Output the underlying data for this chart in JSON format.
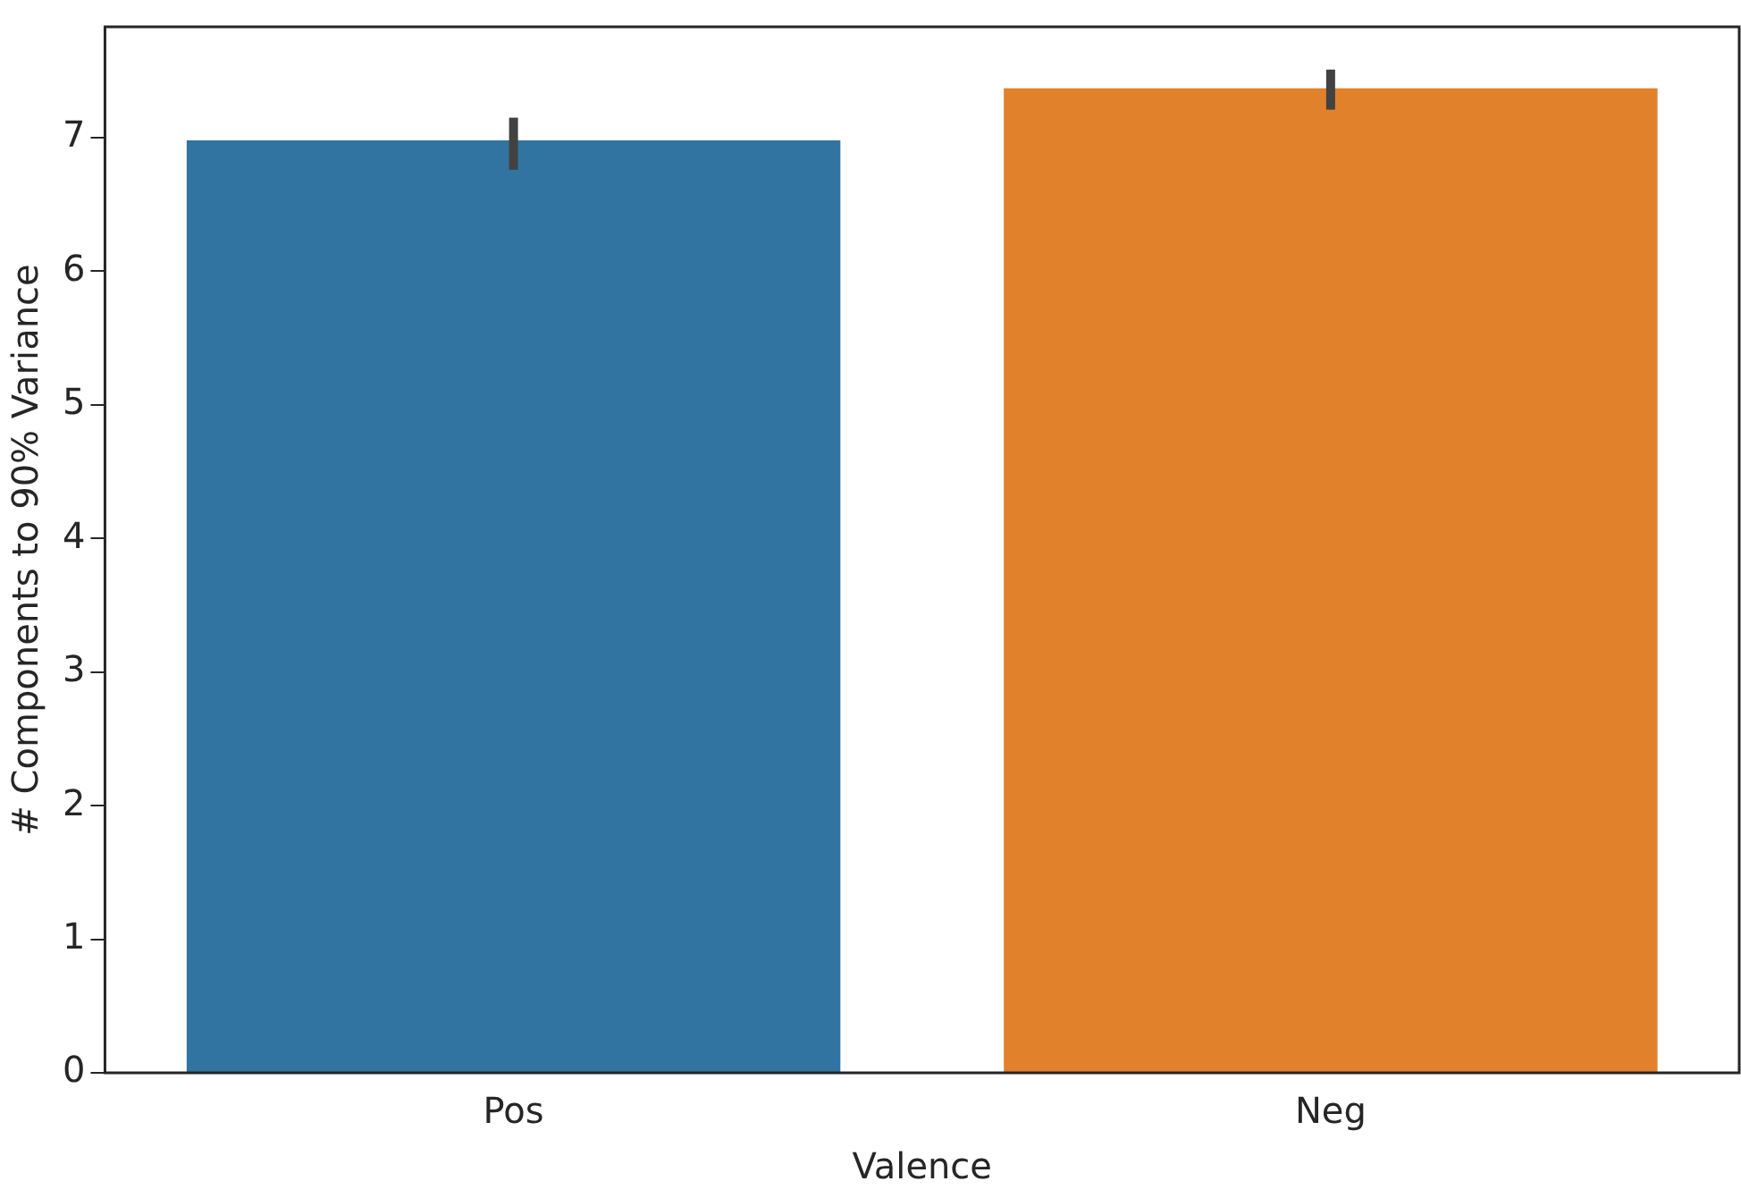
{
  "chart_data": {
    "type": "bar",
    "xlabel": "Valence",
    "ylabel": "# Components to 90% Variance",
    "categories": [
      "Pos",
      "Neg"
    ],
    "values": [
      6.98,
      7.37
    ],
    "colors": [
      "#3274a1",
      "#e1812c"
    ],
    "errors": [
      [
        6.76,
        7.15
      ],
      [
        7.21,
        7.51
      ]
    ],
    "ylim": [
      0,
      7.83
    ],
    "yticks": [
      0,
      1,
      2,
      3,
      4,
      5,
      6,
      7
    ],
    "grid": false,
    "legend": false
  }
}
